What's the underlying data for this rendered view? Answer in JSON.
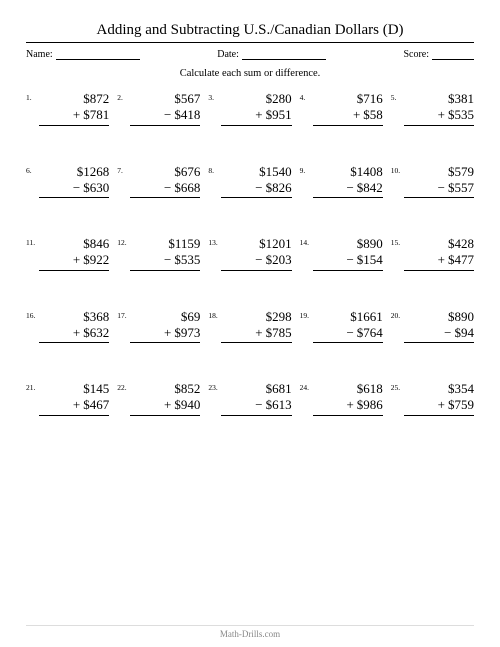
{
  "title": "Adding and Subtracting U.S./Canadian Dollars (D)",
  "meta": {
    "name_label": "Name:",
    "date_label": "Date:",
    "score_label": "Score:"
  },
  "instruction": "Calculate each sum or difference.",
  "footer": "Math-Drills.com",
  "style": {
    "font_family": "Times New Roman",
    "title_fontsize": 15,
    "meta_fontsize": 10,
    "instruction_fontsize": 10.5,
    "problem_fontsize": 13,
    "number_fontsize": 7.5,
    "currency_symbol": "$",
    "columns": 5,
    "rows": 5
  },
  "problems": [
    {
      "n": "1.",
      "a": "$872",
      "op": "+",
      "b": "$781"
    },
    {
      "n": "2.",
      "a": "$567",
      "op": "−",
      "b": "$418"
    },
    {
      "n": "3.",
      "a": "$280",
      "op": "+",
      "b": "$951"
    },
    {
      "n": "4.",
      "a": "$716",
      "op": "+",
      "b": "$58"
    },
    {
      "n": "5.",
      "a": "$381",
      "op": "+",
      "b": "$535"
    },
    {
      "n": "6.",
      "a": "$1268",
      "op": "−",
      "b": "$630"
    },
    {
      "n": "7.",
      "a": "$676",
      "op": "−",
      "b": "$668"
    },
    {
      "n": "8.",
      "a": "$1540",
      "op": "−",
      "b": "$826"
    },
    {
      "n": "9.",
      "a": "$1408",
      "op": "−",
      "b": "$842"
    },
    {
      "n": "10.",
      "a": "$579",
      "op": "−",
      "b": "$557"
    },
    {
      "n": "11.",
      "a": "$846",
      "op": "+",
      "b": "$922"
    },
    {
      "n": "12.",
      "a": "$1159",
      "op": "−",
      "b": "$535"
    },
    {
      "n": "13.",
      "a": "$1201",
      "op": "−",
      "b": "$203"
    },
    {
      "n": "14.",
      "a": "$890",
      "op": "−",
      "b": "$154"
    },
    {
      "n": "15.",
      "a": "$428",
      "op": "+",
      "b": "$477"
    },
    {
      "n": "16.",
      "a": "$368",
      "op": "+",
      "b": "$632"
    },
    {
      "n": "17.",
      "a": "$69",
      "op": "+",
      "b": "$973"
    },
    {
      "n": "18.",
      "a": "$298",
      "op": "+",
      "b": "$785"
    },
    {
      "n": "19.",
      "a": "$1661",
      "op": "−",
      "b": "$764"
    },
    {
      "n": "20.",
      "a": "$890",
      "op": "−",
      "b": "$94"
    },
    {
      "n": "21.",
      "a": "$145",
      "op": "+",
      "b": "$467"
    },
    {
      "n": "22.",
      "a": "$852",
      "op": "+",
      "b": "$940"
    },
    {
      "n": "23.",
      "a": "$681",
      "op": "−",
      "b": "$613"
    },
    {
      "n": "24.",
      "a": "$618",
      "op": "+",
      "b": "$986"
    },
    {
      "n": "25.",
      "a": "$354",
      "op": "+",
      "b": "$759"
    }
  ]
}
